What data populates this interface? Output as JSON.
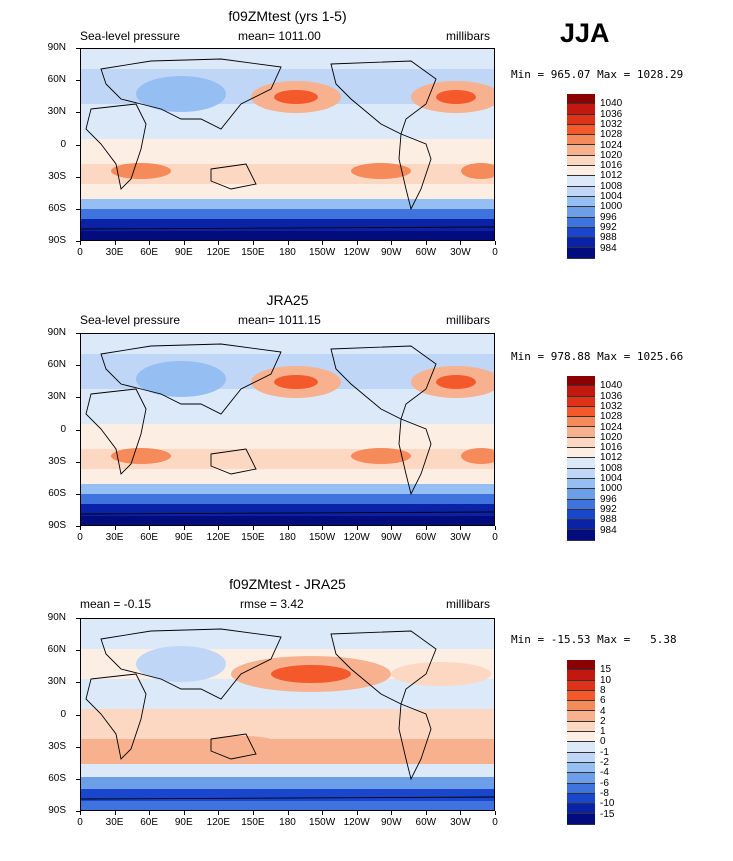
{
  "season": "JJA",
  "panels": [
    {
      "title": "f09ZMtest (yrs 1-5)",
      "variable": "Sea-level pressure",
      "stat": "mean=  1011.00",
      "units": "millibars",
      "minmax": "Min = 965.07 Max = 1028.29",
      "levels": [
        "1040",
        "1036",
        "1032",
        "1028",
        "1024",
        "1020",
        "1016",
        "1012",
        "1008",
        "1004",
        "1000",
        "996",
        "992",
        "988",
        "984"
      ],
      "colors": [
        "#8b0000",
        "#c1180f",
        "#dd3319",
        "#f3592a",
        "#f58a5a",
        "#f8b18f",
        "#fcd7c2",
        "#fdeee3",
        "#dce9f9",
        "#bfd6f6",
        "#95bef2",
        "#6d9ee8",
        "#3f73de",
        "#1a46cc",
        "#0a23a6",
        "#020c7d"
      ]
    },
    {
      "title": "JRA25",
      "variable": "Sea-level pressure",
      "stat": "mean=  1011.15",
      "units": "millibars",
      "minmax": "Min = 978.88 Max = 1025.66",
      "levels": [
        "1040",
        "1036",
        "1032",
        "1028",
        "1024",
        "1020",
        "1016",
        "1012",
        "1008",
        "1004",
        "1000",
        "996",
        "992",
        "988",
        "984"
      ],
      "colors": [
        "#8b0000",
        "#c1180f",
        "#dd3319",
        "#f3592a",
        "#f58a5a",
        "#f8b18f",
        "#fcd7c2",
        "#fdeee3",
        "#dce9f9",
        "#bfd6f6",
        "#95bef2",
        "#6d9ee8",
        "#3f73de",
        "#1a46cc",
        "#0a23a6",
        "#020c7d"
      ]
    },
    {
      "title": "f09ZMtest - JRA25",
      "variable": "mean =   -0.15",
      "stat": "rmse =    3.42",
      "units": "millibars",
      "minmax": "Min = -15.53 Max =   5.38",
      "levels": [
        "15",
        "10",
        "8",
        "6",
        "4",
        "2",
        "1",
        "0",
        "-1",
        "-2",
        "-4",
        "-6",
        "-8",
        "-10",
        "-15"
      ],
      "colors": [
        "#8b0000",
        "#c1180f",
        "#dd3319",
        "#f3592a",
        "#f58a5a",
        "#f8b18f",
        "#fcd7c2",
        "#fdeee3",
        "#dce9f9",
        "#bfd6f6",
        "#95bef2",
        "#6d9ee8",
        "#3f73de",
        "#1a46cc",
        "#0a23a6",
        "#020c7d"
      ]
    }
  ],
  "lat_labels": [
    "90N",
    "60N",
    "30N",
    "0",
    "30S",
    "60S",
    "90S"
  ],
  "lon_labels": [
    "0",
    "30E",
    "60E",
    "90E",
    "120E",
    "150E",
    "180",
    "150W",
    "120W",
    "90W",
    "60W",
    "30W",
    "0"
  ]
}
